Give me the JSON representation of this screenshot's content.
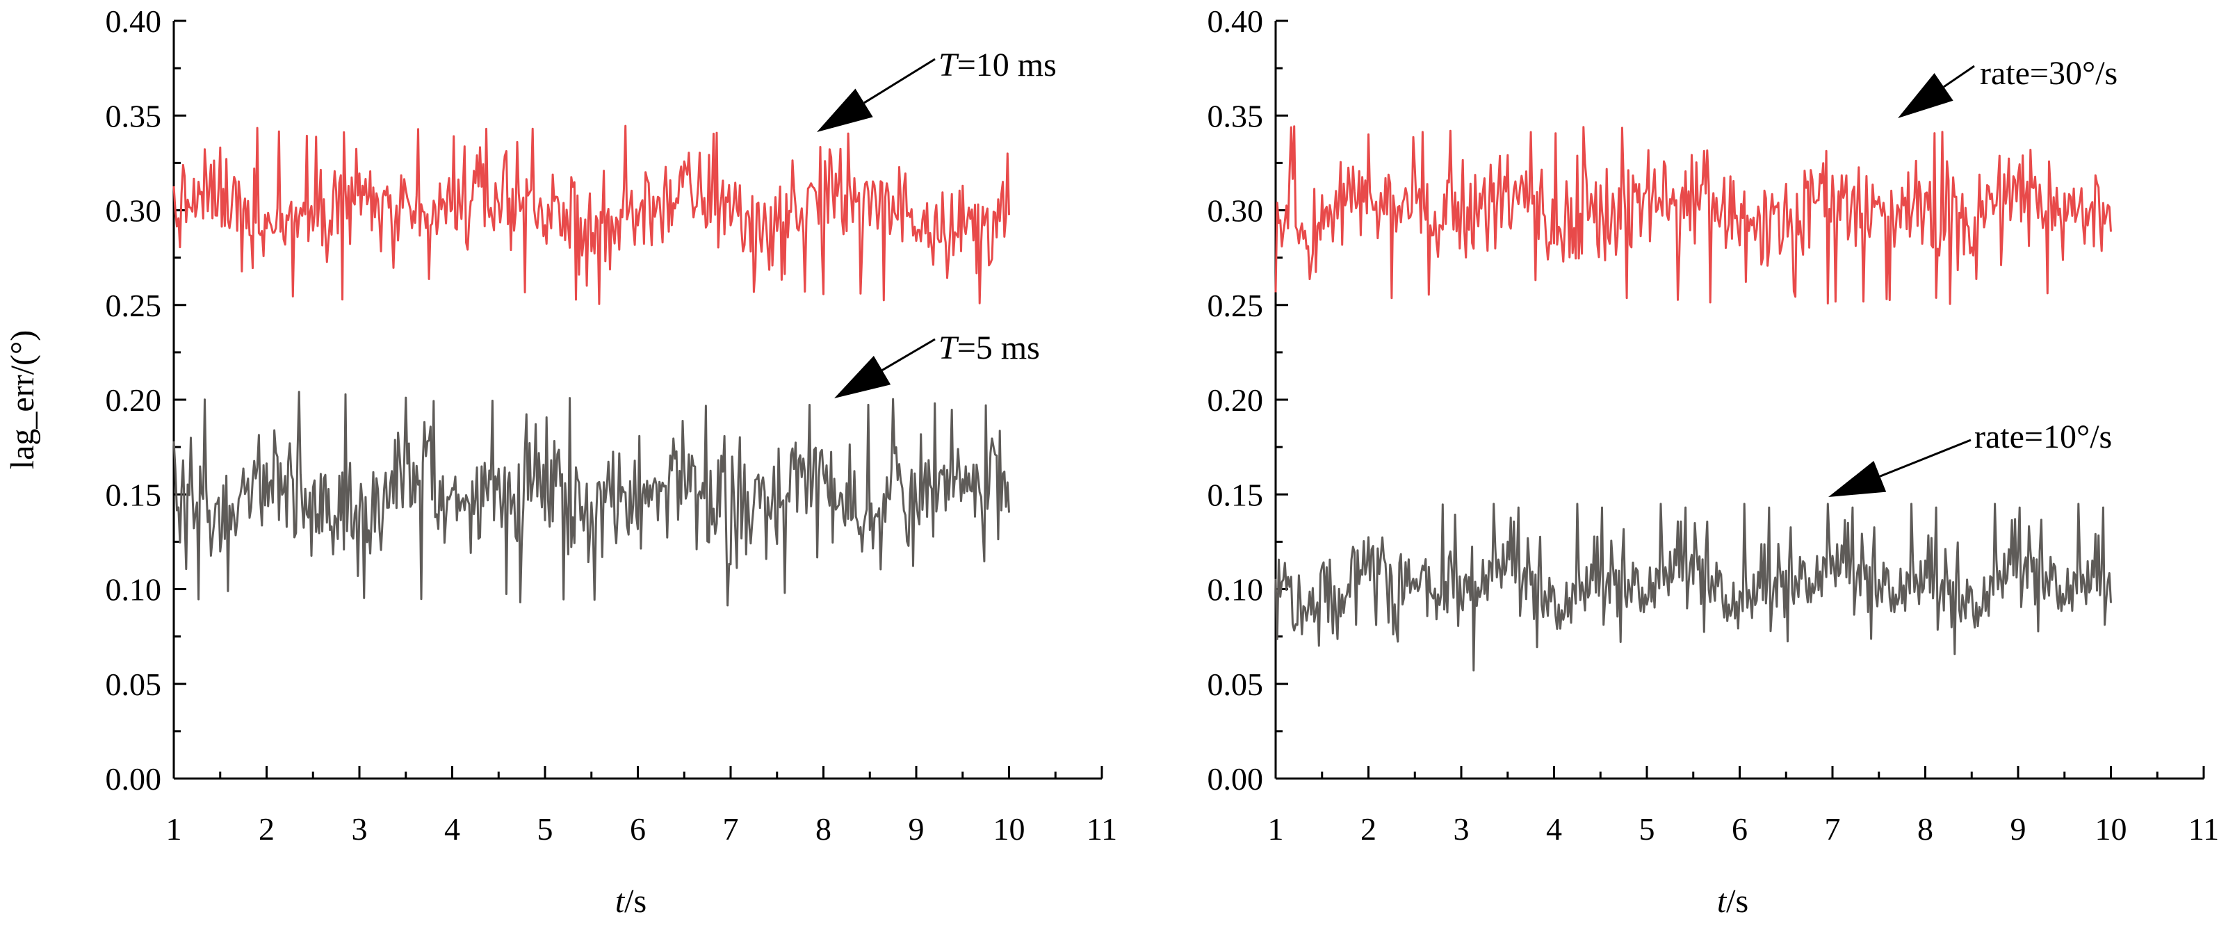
{
  "chart_data": [
    {
      "type": "line",
      "title": "",
      "xlabel": "t/s",
      "ylabel": "lag_err/(°)",
      "xlim": [
        1,
        11
      ],
      "ylim": [
        0.0,
        0.4
      ],
      "x_ticks": [
        "1",
        "2",
        "3",
        "4",
        "5",
        "6",
        "7",
        "8",
        "9",
        "10",
        "11"
      ],
      "y_ticks": [
        "0.00",
        "0.05",
        "0.10",
        "0.15",
        "0.20",
        "0.25",
        "0.30",
        "0.35",
        "0.40"
      ],
      "grid": false,
      "series": [
        {
          "name": "T=10 ms",
          "color": "#e84a4a",
          "mean": 0.3,
          "min": 0.25,
          "max": 0.345,
          "x": [
            1,
            1.5,
            2,
            2.5,
            3,
            3.5,
            4,
            4.5,
            5,
            5.5,
            6,
            6.5,
            7,
            7.5,
            8,
            8.5,
            9,
            9.5,
            10
          ],
          "values": [
            0.3,
            0.31,
            0.29,
            0.3,
            0.31,
            0.29,
            0.3,
            0.31,
            0.3,
            0.29,
            0.3,
            0.31,
            0.3,
            0.29,
            0.31,
            0.3,
            0.3,
            0.29,
            0.3
          ]
        },
        {
          "name": "T=5 ms",
          "color": "#5e5b58",
          "mean": 0.15,
          "min": 0.09,
          "max": 0.205,
          "x": [
            1,
            1.5,
            2,
            2.5,
            3,
            3.5,
            4,
            4.5,
            5,
            5.5,
            6,
            6.5,
            7,
            7.5,
            8,
            8.5,
            9,
            9.5,
            10
          ],
          "values": [
            0.15,
            0.14,
            0.16,
            0.15,
            0.13,
            0.16,
            0.14,
            0.15,
            0.16,
            0.14,
            0.15,
            0.16,
            0.14,
            0.15,
            0.16,
            0.14,
            0.15,
            0.16,
            0.15
          ]
        }
      ],
      "annotations": [
        {
          "prefix": "T",
          "suffix": "=10 ms"
        },
        {
          "prefix": "T",
          "suffix": "=5 ms"
        }
      ]
    },
    {
      "type": "line",
      "title": "",
      "xlabel": "t/s",
      "ylabel": "",
      "xlim": [
        1,
        11
      ],
      "ylim": [
        0.0,
        0.4
      ],
      "x_ticks": [
        "1",
        "2",
        "3",
        "4",
        "5",
        "6",
        "7",
        "8",
        "9",
        "10",
        "11"
      ],
      "y_ticks": [
        "0.00",
        "0.05",
        "0.10",
        "0.15",
        "0.20",
        "0.25",
        "0.30",
        "0.35",
        "0.40"
      ],
      "grid": false,
      "series": [
        {
          "name": "rate=30°/s",
          "color": "#e84a4a",
          "mean": 0.3,
          "min": 0.25,
          "max": 0.345,
          "x": [
            1,
            1.5,
            2,
            2.5,
            3,
            3.5,
            4,
            4.5,
            5,
            5.5,
            6,
            6.5,
            7,
            7.5,
            8,
            8.5,
            9,
            9.5,
            10
          ],
          "values": [
            0.3,
            0.29,
            0.31,
            0.3,
            0.3,
            0.31,
            0.29,
            0.3,
            0.3,
            0.31,
            0.29,
            0.3,
            0.31,
            0.3,
            0.3,
            0.29,
            0.31,
            0.3,
            0.3
          ]
        },
        {
          "name": "rate=10°/s",
          "color": "#5e5b58",
          "mean": 0.1,
          "min": 0.05,
          "max": 0.145,
          "x": [
            1,
            1.5,
            2,
            2.5,
            3,
            3.5,
            4,
            4.5,
            5,
            5.5,
            6,
            6.5,
            7,
            7.5,
            8,
            8.5,
            9,
            9.5,
            10
          ],
          "values": [
            0.1,
            0.09,
            0.11,
            0.1,
            0.1,
            0.11,
            0.09,
            0.1,
            0.1,
            0.11,
            0.09,
            0.1,
            0.11,
            0.1,
            0.1,
            0.09,
            0.11,
            0.1,
            0.1
          ]
        }
      ],
      "annotations": [
        {
          "prefix": "",
          "suffix": "rate=30°/s"
        },
        {
          "prefix": "",
          "suffix": "rate=10°/s"
        }
      ]
    }
  ]
}
